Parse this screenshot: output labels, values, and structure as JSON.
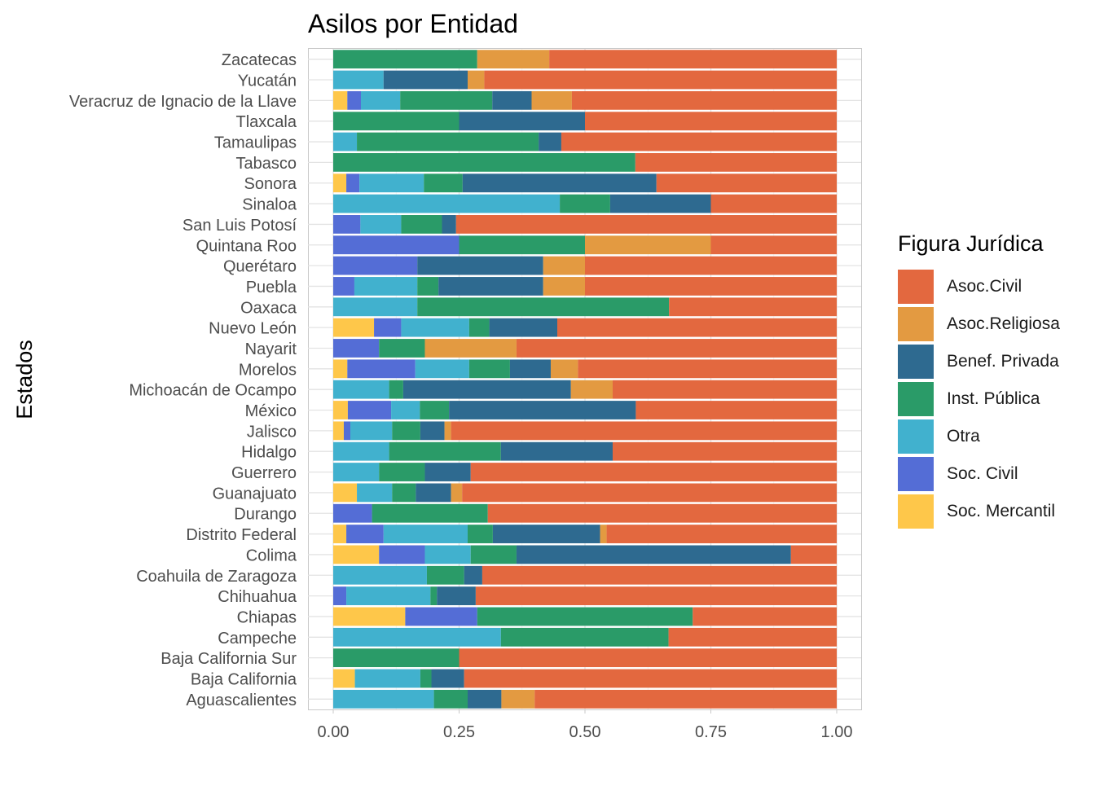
{
  "chart_data": {
    "type": "bar",
    "orientation": "horizontal",
    "stacked": "fill",
    "title": "Asilos por Entidad",
    "xlabel": "",
    "ylabel": "Estados",
    "xlim": [
      0,
      1
    ],
    "x_ticks": [
      "0.00",
      "0.25",
      "0.50",
      "0.75",
      "1.00"
    ],
    "grid": true,
    "legend_title": "Figura Jurídica",
    "legend_position": "right",
    "categories": [
      "Aguascalientes",
      "Baja California",
      "Baja California Sur",
      "Campeche",
      "Chiapas",
      "Chihuahua",
      "Coahuila de Zaragoza",
      "Colima",
      "Distrito Federal",
      "Durango",
      "Guanajuato",
      "Guerrero",
      "Hidalgo",
      "Jalisco",
      "México",
      "Michoacán de Ocampo",
      "Morelos",
      "Nayarit",
      "Nuevo León",
      "Oaxaca",
      "Puebla",
      "Querétaro",
      "Quintana Roo",
      "San Luis Potosí",
      "Sinaloa",
      "Sonora",
      "Tabasco",
      "Tamaulipas",
      "Tlaxcala",
      "Veracruz de Ignacio de la Llave",
      "Yucatán",
      "Zacatecas"
    ],
    "series": [
      {
        "name": "Soc. Mercantil",
        "color": "#FEC74A",
        "values": [
          0,
          0.043,
          0,
          0,
          0.143,
          0,
          0,
          0.091,
          0.026,
          0,
          0.047,
          0,
          0,
          0.021,
          0.029,
          0,
          0.028,
          0,
          0.081,
          0,
          0,
          0,
          0,
          0,
          0,
          0.026,
          0,
          0,
          0,
          0.028,
          0,
          0
        ]
      },
      {
        "name": "Soc. Civil",
        "color": "#546DD6",
        "values": [
          0,
          0,
          0,
          0,
          0.143,
          0.026,
          0,
          0.091,
          0.074,
          0.077,
          0,
          0,
          0,
          0.013,
          0.086,
          0,
          0.135,
          0.091,
          0.054,
          0,
          0.042,
          0.167,
          0.25,
          0.054,
          0,
          0.026,
          0,
          0,
          0,
          0.027,
          0,
          0
        ]
      },
      {
        "name": "Otra",
        "color": "#41B1CE",
        "values": [
          0.2,
          0.13,
          0,
          0.333,
          0,
          0.167,
          0.186,
          0.091,
          0.167,
          0,
          0.07,
          0.091,
          0.111,
          0.083,
          0.057,
          0.111,
          0.107,
          0,
          0.135,
          0.167,
          0.125,
          0,
          0,
          0.081,
          0.45,
          0.128,
          0,
          0.047,
          0,
          0.078,
          0.1,
          0
        ]
      },
      {
        "name": "Inst. Pública",
        "color": "#2A9B68",
        "values": [
          0.067,
          0.022,
          0.25,
          0.333,
          0.428,
          0.013,
          0.074,
          0.091,
          0.05,
          0.23,
          0.047,
          0.091,
          0.222,
          0.056,
          0.058,
          0.028,
          0.081,
          0.091,
          0.04,
          0.5,
          0.042,
          0,
          0.25,
          0.081,
          0.1,
          0.077,
          0.6,
          0.361,
          0.25,
          0.183,
          0,
          0.286
        ]
      },
      {
        "name": "Benef. Privada",
        "color": "#2E6A90",
        "values": [
          0.067,
          0.065,
          0,
          0,
          0,
          0.077,
          0.036,
          0.545,
          0.213,
          0,
          0.07,
          0.091,
          0.222,
          0.048,
          0.371,
          0.333,
          0.081,
          0,
          0.135,
          0,
          0.208,
          0.25,
          0,
          0.028,
          0.2,
          0.385,
          0,
          0.045,
          0.25,
          0.078,
          0.167,
          0
        ]
      },
      {
        "name": "Asoc.Religiosa",
        "color": "#E39A41",
        "values": [
          0.066,
          0,
          0,
          0,
          0,
          0,
          0,
          0,
          0.013,
          0,
          0.022,
          0,
          0,
          0.013,
          0,
          0.083,
          0.054,
          0.182,
          0,
          0,
          0.083,
          0.083,
          0.25,
          0,
          0,
          0,
          0,
          0,
          0,
          0.08,
          0.033,
          0.143
        ]
      },
      {
        "name": "Asoc.Civil",
        "color": "#E3683F",
        "values": [
          0.6,
          0.74,
          0.75,
          0.334,
          0.286,
          0.717,
          0.704,
          0.091,
          0.457,
          0.693,
          0.744,
          0.727,
          0.445,
          0.766,
          0.399,
          0.445,
          0.514,
          0.636,
          0.555,
          0.333,
          0.5,
          0.5,
          0.25,
          0.756,
          0.25,
          0.358,
          0.4,
          0.547,
          0.5,
          0.526,
          0.7,
          0.571
        ]
      }
    ]
  }
}
